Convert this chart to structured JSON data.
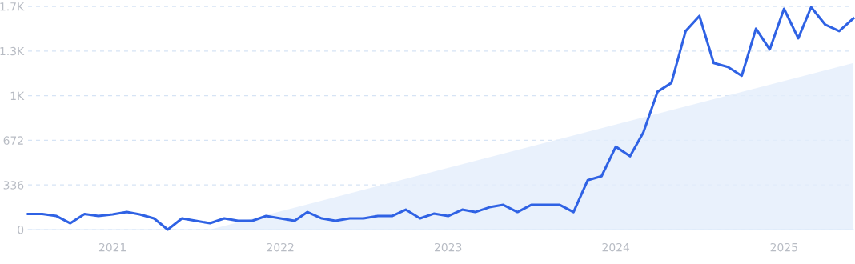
{
  "chart_data": {
    "type": "line",
    "x": [
      "2020-07",
      "2020-08",
      "2020-09",
      "2020-10",
      "2020-11",
      "2020-12",
      "2021-01",
      "2021-02",
      "2021-03",
      "2021-04",
      "2021-05",
      "2021-06",
      "2021-07",
      "2021-08",
      "2021-09",
      "2021-10",
      "2021-11",
      "2021-12",
      "2022-01",
      "2022-02",
      "2022-03",
      "2022-04",
      "2022-05",
      "2022-06",
      "2022-07",
      "2022-08",
      "2022-09",
      "2022-10",
      "2022-11",
      "2022-12",
      "2023-01",
      "2023-02",
      "2023-03",
      "2023-04",
      "2023-05",
      "2023-06",
      "2023-07",
      "2023-08",
      "2023-09",
      "2023-10",
      "2023-11",
      "2023-12",
      "2024-01",
      "2024-02",
      "2024-03",
      "2024-04",
      "2024-05",
      "2024-06",
      "2024-07",
      "2024-08",
      "2024-09",
      "2024-10",
      "2024-11",
      "2024-12",
      "2025-01",
      "2025-02",
      "2025-03",
      "2025-04",
      "2025-05",
      "2025-06"
    ],
    "series": [
      {
        "type": "area",
        "color": "#e3eefb",
        "x": [
          "2021-08",
          "2025-06"
        ],
        "values": [
          0,
          1254
        ]
      },
      {
        "color": "#2f62e4",
        "values": [
          117,
          117,
          102,
          48,
          117,
          102,
          114,
          132,
          114,
          84,
          0,
          84,
          66,
          48,
          84,
          66,
          66,
          102,
          84,
          66,
          132,
          84,
          66,
          84,
          84,
          102,
          102,
          150,
          84,
          120,
          102,
          150,
          132,
          168,
          186,
          132,
          186,
          186,
          186,
          132,
          372,
          402,
          624,
          552,
          732,
          1038,
          1104,
          1494,
          1608,
          1254,
          1224,
          1158,
          1512,
          1356,
          1662,
          1440,
          1674,
          1542,
          1494,
          1590
        ]
      }
    ],
    "xlim": [
      "2020-07",
      "2025-06"
    ],
    "xticks": [
      "2021",
      "2022",
      "2023",
      "2024",
      "2025"
    ],
    "ylim": [
      0,
      1680
    ],
    "yticks": [
      0,
      336,
      672,
      {
        "value": 1008,
        "label": "1K"
      },
      {
        "value": 1344,
        "label": "1.3K"
      },
      {
        "value": 1680,
        "label": "1.7K"
      }
    ],
    "grid": "y",
    "marker": "none",
    "line_style": "solid"
  }
}
